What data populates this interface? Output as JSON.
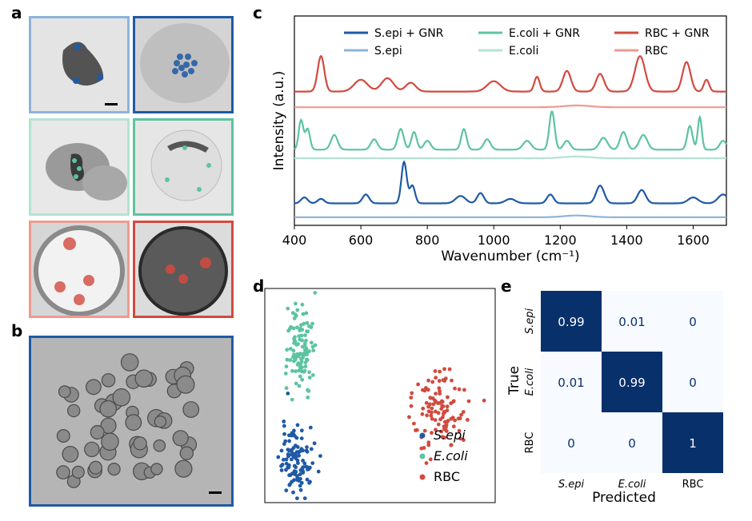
{
  "panels": {
    "a": "a",
    "b": "b",
    "c": "c",
    "d": "d",
    "e": "e"
  },
  "colors": {
    "sepi_gnr": "#1f5aa6",
    "sepi": "#8fb3d9",
    "ecoli_gnr": "#5cc4a0",
    "ecoli": "#b3e3cf",
    "rbc_gnr": "#d24a3f",
    "rbc": "#ef9a90",
    "cm_dark": "#08306b",
    "cm_light": "#f7fbff"
  },
  "chart_data": [
    {
      "type": "line",
      "xlabel": "Wavenumber (cm⁻¹)",
      "ylabel": "Intensity (a.u.)",
      "xlim": [
        400,
        1700
      ],
      "xticks": [
        400,
        600,
        800,
        1000,
        1200,
        1400,
        1600
      ],
      "legend": [
        {
          "label": "S.epi + GNR",
          "key": "sepi_gnr"
        },
        {
          "label": "S.epi",
          "key": "sepi"
        },
        {
          "label": "E.coli + GNR",
          "key": "ecoli_gnr"
        },
        {
          "label": "E.coli",
          "key": "ecoli"
        },
        {
          "label": "RBC + GNR",
          "key": "rbc_gnr"
        },
        {
          "label": "RBC",
          "key": "rbc"
        }
      ],
      "series": [
        {
          "name": "RBC + GNR",
          "key": "rbc_gnr",
          "offset": 2.0,
          "base": 0.35,
          "peaks": [
            [
              480,
              1.2,
              10
            ],
            [
              600,
              0.4,
              20
            ],
            [
              680,
              0.45,
              18
            ],
            [
              750,
              0.3,
              15
            ],
            [
              1000,
              0.35,
              20
            ],
            [
              1130,
              0.5,
              8
            ],
            [
              1220,
              0.7,
              12
            ],
            [
              1320,
              0.6,
              12
            ],
            [
              1440,
              1.2,
              15
            ],
            [
              1580,
              1.0,
              12
            ],
            [
              1640,
              0.4,
              8
            ]
          ]
        },
        {
          "name": "RBC",
          "key": "rbc",
          "offset": 1.9,
          "base": 0.0,
          "peaks": [
            [
              1250,
              0.06,
              40
            ]
          ]
        },
        {
          "name": "E.coli + GNR",
          "key": "ecoli_gnr",
          "offset": 1.0,
          "base": 0.2,
          "peaks": [
            [
              420,
              1.0,
              7
            ],
            [
              440,
              0.7,
              7
            ],
            [
              520,
              0.5,
              10
            ],
            [
              640,
              0.35,
              10
            ],
            [
              720,
              0.7,
              9
            ],
            [
              760,
              0.6,
              8
            ],
            [
              800,
              0.3,
              10
            ],
            [
              910,
              0.7,
              8
            ],
            [
              980,
              0.35,
              10
            ],
            [
              1100,
              0.3,
              12
            ],
            [
              1175,
              1.3,
              8
            ],
            [
              1220,
              0.3,
              10
            ],
            [
              1330,
              0.4,
              12
            ],
            [
              1390,
              0.6,
              10
            ],
            [
              1450,
              0.5,
              12
            ],
            [
              1590,
              0.8,
              8
            ],
            [
              1620,
              1.1,
              6
            ],
            [
              1690,
              0.3,
              10
            ]
          ]
        },
        {
          "name": "E.coli",
          "key": "ecoli",
          "offset": 0.95,
          "base": 0.0,
          "peaks": [
            [
              1250,
              0.06,
              40
            ]
          ]
        },
        {
          "name": "S.epi + GNR",
          "key": "sepi_gnr",
          "offset": 0.0,
          "base": 0.2,
          "peaks": [
            [
              430,
              0.2,
              10
            ],
            [
              480,
              0.15,
              10
            ],
            [
              615,
              0.3,
              10
            ],
            [
              730,
              1.4,
              8
            ],
            [
              755,
              0.6,
              8
            ],
            [
              900,
              0.25,
              15
            ],
            [
              960,
              0.35,
              10
            ],
            [
              1050,
              0.15,
              15
            ],
            [
              1170,
              0.3,
              10
            ],
            [
              1320,
              0.6,
              12
            ],
            [
              1445,
              0.45,
              12
            ],
            [
              1600,
              0.2,
              15
            ],
            [
              1690,
              0.3,
              15
            ]
          ]
        },
        {
          "name": "S.epi",
          "key": "sepi",
          "offset": -0.15,
          "base": 0.0,
          "peaks": [
            [
              1250,
              0.06,
              40
            ]
          ]
        }
      ]
    },
    {
      "type": "scatter",
      "legend": [
        {
          "label": "S.epi",
          "key": "sepi_gnr"
        },
        {
          "label": "E.coli",
          "key": "ecoli_gnr"
        },
        {
          "label": "RBC",
          "key": "rbc_gnr"
        }
      ],
      "clusters": [
        {
          "name": "S.epi",
          "key": "sepi_gnr",
          "cx": 0.13,
          "cy": 0.2,
          "sx": 0.045,
          "sy": 0.12,
          "n": 110
        },
        {
          "name": "E.coli",
          "key": "ecoli_gnr",
          "cx": 0.15,
          "cy": 0.72,
          "sx": 0.04,
          "sy": 0.14,
          "n": 110
        },
        {
          "name": "RBC",
          "key": "rbc_gnr",
          "cx": 0.75,
          "cy": 0.44,
          "sx": 0.07,
          "sy": 0.12,
          "n": 110
        }
      ]
    },
    {
      "type": "heatmap",
      "xlabel": "Predicted",
      "ylabel": "True",
      "labels": [
        "S.epi",
        "E.coli",
        "RBC"
      ],
      "matrix": [
        [
          0.99,
          0.01,
          0
        ],
        [
          0.01,
          0.99,
          0
        ],
        [
          0,
          0,
          1
        ]
      ]
    }
  ]
}
